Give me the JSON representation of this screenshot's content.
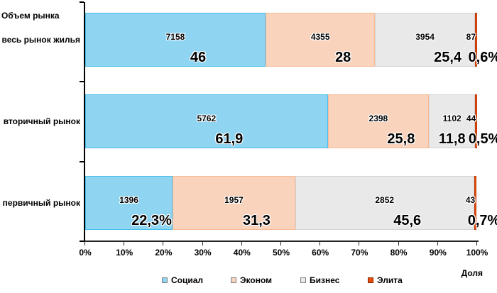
{
  "chart_data": {
    "type": "bar",
    "stacked": true,
    "orientation": "horizontal",
    "title": "Объем рынка",
    "share_label": "Доля",
    "categories": [
      "весь рынок жилья",
      "вторичный рынок",
      "первичный рынок"
    ],
    "x_ticks": [
      "0%",
      "10%",
      "20%",
      "30%",
      "40%",
      "50%",
      "60%",
      "70%",
      "80%",
      "90%",
      "100%"
    ],
    "xlim": [
      0,
      100
    ],
    "grid": false,
    "legend_position": "bottom",
    "series": [
      {
        "name": "Социал",
        "fill": "#8FD4F1",
        "border": "#49BFEC",
        "values": [
          7158,
          5762,
          1396
        ],
        "pct": [
          46,
          61.9,
          22.3
        ],
        "pct_labels": [
          "46",
          "61,9",
          "22,3%"
        ]
      },
      {
        "name": "Эконом",
        "fill": "#FAD3BD",
        "border": "#F7BA95",
        "values": [
          4355,
          2398,
          1957
        ],
        "pct": [
          28,
          25.8,
          31.3
        ],
        "pct_labels": [
          "28",
          "25,8",
          "31,3"
        ]
      },
      {
        "name": "Бизнес",
        "fill": "#E9E9E9",
        "border": "#D4D4D4",
        "values": [
          3954,
          1102,
          2852
        ],
        "pct": [
          25.4,
          11.8,
          45.6
        ],
        "pct_labels": [
          "25,4",
          "11,8",
          "45,6"
        ]
      },
      {
        "name": "Элита",
        "fill": "#E94A0D",
        "border": "#C23C07",
        "values": [
          87,
          44,
          43
        ],
        "pct": [
          0.6,
          0.5,
          0.7
        ],
        "pct_labels": [
          "0,6%",
          "0,5%",
          "0,7%"
        ],
        "legend_marker_border": "#7F2D00"
      }
    ]
  }
}
